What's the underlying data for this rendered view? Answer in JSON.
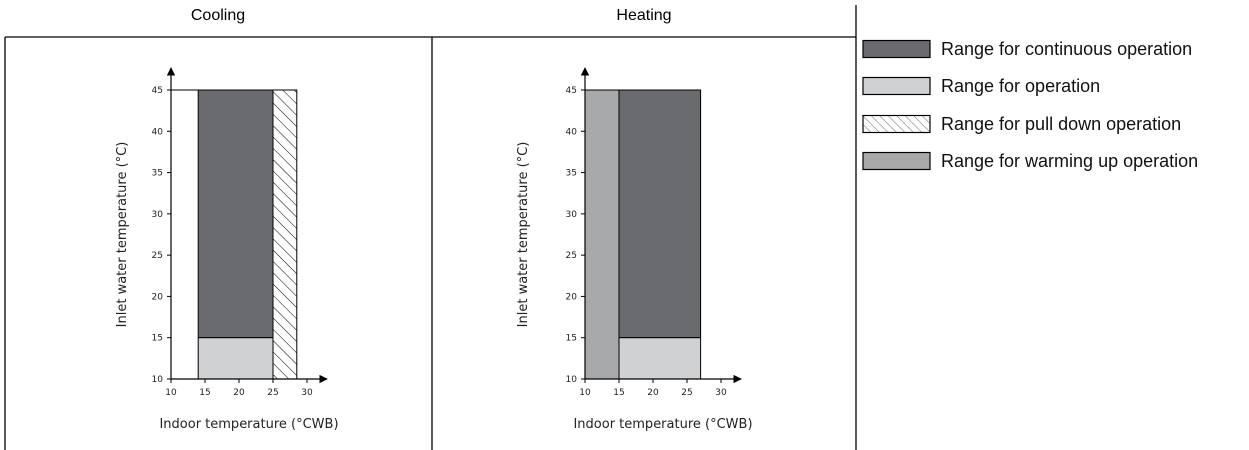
{
  "colors": {
    "continuous": "#6a6b6e",
    "operation": "#d0d1d3",
    "warming": "#a8a9ab",
    "hatch": "#000000"
  },
  "legend": {
    "items": [
      {
        "key": "continuous",
        "label": "Range for continuous operation",
        "fill": "solid",
        "color": "#6a6b6e"
      },
      {
        "key": "operation",
        "label": "Range for operation",
        "fill": "solid",
        "color": "#d0d1d3"
      },
      {
        "key": "pulldown",
        "label": "Range for pull down operation",
        "fill": "hatch",
        "color": "#ffffff"
      },
      {
        "key": "warming",
        "label": "Range for warming up operation",
        "fill": "solid",
        "color": "#a8a9ab"
      }
    ]
  },
  "chart_data": [
    {
      "type": "area",
      "title": "Cooling",
      "xlabel": "Indoor temperature (°CWB)",
      "ylabel": "Inlet water temperature (°C)",
      "xlim": [
        10,
        30
      ],
      "ylim": [
        10,
        45
      ],
      "xticks": [
        10,
        15,
        20,
        25,
        30
      ],
      "yticks": [
        10,
        15,
        20,
        25,
        30,
        35,
        40,
        45
      ],
      "regions": [
        {
          "range": "continuous",
          "x": [
            14,
            25
          ],
          "y": [
            15,
            45
          ]
        },
        {
          "range": "operation",
          "x": [
            14,
            25
          ],
          "y": [
            10,
            15
          ]
        },
        {
          "range": "pulldown",
          "x": [
            25,
            28.5
          ],
          "y": [
            10,
            45
          ]
        }
      ]
    },
    {
      "type": "area",
      "title": "Heating",
      "xlabel": "Indoor temperature (°CWB)",
      "ylabel": "Inlet water temperature (°C)",
      "xlim": [
        10,
        30
      ],
      "ylim": [
        10,
        45
      ],
      "xticks": [
        10,
        15,
        20,
        25,
        30
      ],
      "yticks": [
        10,
        15,
        20,
        25,
        30,
        35,
        40,
        45
      ],
      "regions": [
        {
          "range": "warming",
          "x": [
            10,
            15
          ],
          "y": [
            10,
            45
          ]
        },
        {
          "range": "continuous",
          "x": [
            15,
            27
          ],
          "y": [
            15,
            45
          ]
        },
        {
          "range": "operation",
          "x": [
            15,
            27
          ],
          "y": [
            10,
            15
          ]
        }
      ]
    }
  ]
}
